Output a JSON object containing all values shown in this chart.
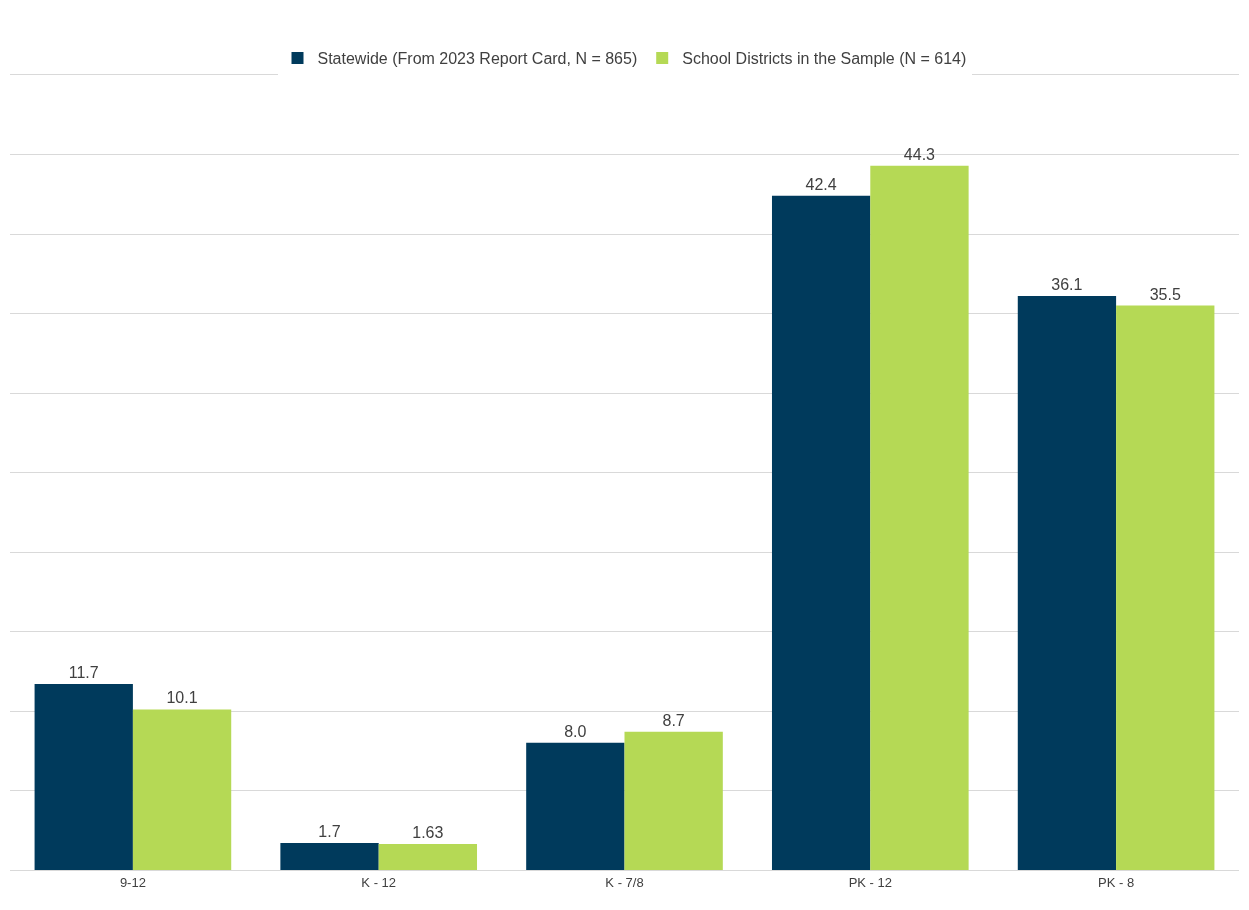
{
  "chart_data": {
    "type": "bar",
    "categories": [
      "9-12",
      "K - 12",
      "K - 7/8",
      "PK - 12",
      "PK - 8"
    ],
    "series": [
      {
        "name": "Statewide (From 2023 Report Card, N = 865)",
        "color": "#003a5c",
        "values": [
          11.7,
          1.7,
          8.0,
          42.4,
          36.1
        ],
        "value_labels": [
          "11.7",
          "1.7",
          "8.0",
          "42.4",
          "36.1"
        ]
      },
      {
        "name": "School Districts in the Sample (N = 614)",
        "color": "#b5d955",
        "values": [
          10.1,
          1.63,
          8.7,
          44.3,
          35.5
        ],
        "value_labels": [
          "10.1",
          "1.63",
          "8.7",
          "44.3",
          "35.5"
        ]
      }
    ],
    "ylim": [
      0,
      50
    ],
    "yticks": [
      {
        "value": 0,
        "label": null
      },
      {
        "value": 5,
        "label": null
      },
      {
        "value": 10,
        "label": null
      },
      {
        "value": 15,
        "label": null
      },
      {
        "value": 20,
        "label": null
      },
      {
        "value": 25,
        "label": null
      },
      {
        "value": 30,
        "label": null
      },
      {
        "value": 35,
        "label": null
      },
      {
        "value": 40,
        "label": null
      },
      {
        "value": 45,
        "label": null
      },
      {
        "value": 50,
        "label": null
      }
    ],
    "tick_labels": "x",
    "grid": "y",
    "legend": "top"
  }
}
